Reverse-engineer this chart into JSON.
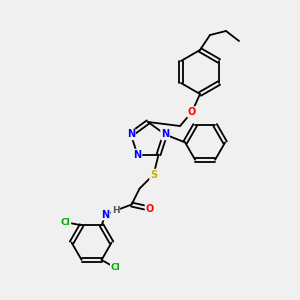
{
  "bg_color": "#f0f0f0",
  "atom_colors": {
    "N": "#0000ff",
    "O": "#ff0000",
    "S": "#ccaa00",
    "Cl": "#00aa00",
    "H": "#555555",
    "C": "#000000"
  }
}
